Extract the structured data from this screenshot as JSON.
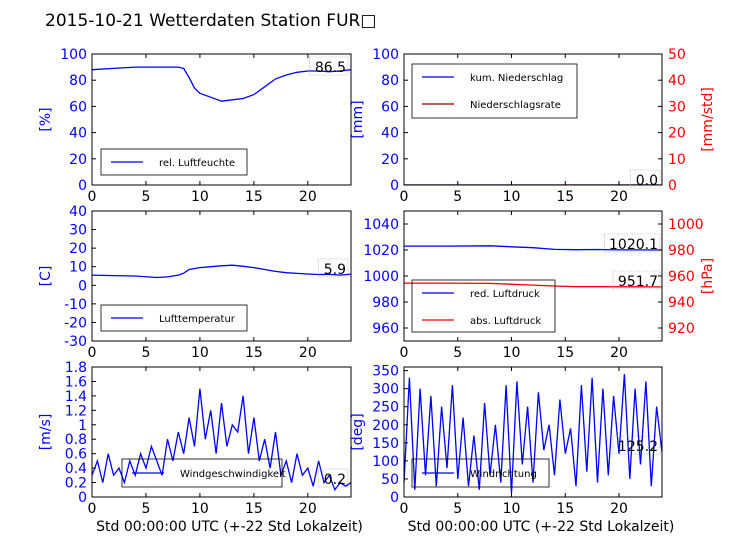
{
  "figure": {
    "title": "2015-10-21 Wetterdaten Station FUR□"
  },
  "colors": {
    "left_axis": "#0000ff",
    "right_axis": "#ff0000",
    "dark_red": "#8b0000"
  },
  "chart_data": [
    {
      "type": "line",
      "panel": "humidity",
      "xlabel": "",
      "ylabel": "[%]",
      "xlim": [
        0,
        24
      ],
      "ylim": [
        0,
        100
      ],
      "x_ticks": [
        0,
        5,
        10,
        15,
        20
      ],
      "y_ticks": [
        0,
        20,
        40,
        60,
        80,
        100
      ],
      "legend_position": "lower-left",
      "current_value_label": "86.5",
      "series": [
        {
          "name": "rel. Luftfeuchte",
          "color": "#0000ff",
          "x": [
            0,
            2,
            4,
            6,
            8,
            8.5,
            9,
            9.5,
            10,
            11,
            12,
            13,
            14,
            15,
            16,
            17,
            18,
            19,
            20,
            21,
            22,
            23,
            24
          ],
          "y": [
            88,
            89,
            90,
            90,
            90,
            89,
            82,
            74,
            70,
            67,
            64,
            65,
            66,
            69,
            75,
            81,
            84,
            86,
            87,
            87,
            86.5,
            87,
            88
          ]
        }
      ]
    },
    {
      "type": "line",
      "panel": "precipitation",
      "xlabel": "",
      "ylabel": "[mm]",
      "y2label": "[mm/std]",
      "xlim": [
        0,
        24
      ],
      "ylim": [
        0,
        100
      ],
      "y2lim": [
        0,
        50
      ],
      "x_ticks": [
        0,
        5,
        10,
        15,
        20
      ],
      "y_ticks": [
        0,
        20,
        40,
        60,
        80,
        100
      ],
      "y2_ticks": [
        0,
        10,
        20,
        30,
        40,
        50
      ],
      "legend_position": "upper-left",
      "current_value_label": "0.0",
      "series": [
        {
          "name": "kum. Niederschlag",
          "color": "#0000ff",
          "x": [
            0,
            24
          ],
          "y": [
            0,
            0
          ]
        },
        {
          "name": "Niederschlagsrate",
          "color": "#ff0000",
          "axis": "right",
          "x": [
            0,
            24
          ],
          "y": [
            0,
            0
          ]
        }
      ]
    },
    {
      "type": "line",
      "panel": "temperature",
      "xlabel": "",
      "ylabel": "[C]",
      "xlim": [
        0,
        24
      ],
      "ylim": [
        -30,
        40
      ],
      "x_ticks": [
        0,
        5,
        10,
        15,
        20
      ],
      "y_ticks": [
        -30,
        -20,
        -10,
        0,
        10,
        20,
        30,
        40
      ],
      "legend_position": "lower-left",
      "current_value_label": "5.9",
      "series": [
        {
          "name": "Lufttemperatur",
          "color": "#0000ff",
          "x": [
            0,
            2,
            4,
            6,
            7,
            8,
            8.5,
            9,
            10,
            11,
            12,
            13,
            14,
            15,
            16,
            17,
            18,
            19,
            20,
            21,
            22,
            23,
            24
          ],
          "y": [
            5.5,
            5.2,
            5.0,
            4.2,
            4.5,
            5.5,
            6.5,
            8.5,
            9.5,
            10.0,
            10.5,
            10.8,
            10.2,
            9.5,
            8.5,
            7.5,
            6.8,
            6.4,
            6.1,
            5.8,
            5.9,
            5.5,
            6.0
          ]
        }
      ]
    },
    {
      "type": "line",
      "panel": "pressure",
      "xlabel": "",
      "ylabel": "",
      "y2label": "[hPa]",
      "xlim": [
        0,
        24
      ],
      "ylim": [
        950,
        1050
      ],
      "y2lim": [
        910,
        1010
      ],
      "x_ticks": [
        0,
        5,
        10,
        15,
        20
      ],
      "y_ticks": [
        960,
        980,
        1000,
        1020,
        1040
      ],
      "y2_ticks": [
        920,
        940,
        960,
        980,
        1000
      ],
      "legend_position": "lower-left",
      "current_value_labels": [
        "1020.1",
        "951.7"
      ],
      "series": [
        {
          "name": "red. Luftdruck",
          "color": "#0000ff",
          "x": [
            0,
            4,
            8,
            10,
            12,
            14,
            16,
            18,
            20,
            22,
            24
          ],
          "y": [
            1023,
            1023,
            1023.2,
            1022.5,
            1021.8,
            1020.5,
            1020.2,
            1020.4,
            1020.1,
            1020.1,
            1020.0
          ]
        },
        {
          "name": "abs. Luftdruck",
          "color": "#ff0000",
          "axis": "right",
          "x": [
            0,
            4,
            8,
            10,
            12,
            14,
            16,
            18,
            20,
            22,
            24
          ],
          "y": [
            954.5,
            954.5,
            954.3,
            953.6,
            953.0,
            952.3,
            951.8,
            951.8,
            951.7,
            951.7,
            951.6
          ]
        }
      ]
    },
    {
      "type": "line",
      "panel": "wind_speed",
      "xlabel": "Std 00:00:00 UTC (+-22 Std Lokalzeit)",
      "ylabel": "[m/s]",
      "xlim": [
        0,
        24
      ],
      "ylim": [
        0,
        1.8
      ],
      "x_ticks": [
        0,
        5,
        10,
        15,
        20
      ],
      "y_ticks": [
        0.0,
        0.2,
        0.4,
        0.6,
        0.8,
        1.0,
        1.2,
        1.4,
        1.6,
        1.8
      ],
      "legend_position": "lower-center",
      "current_value_label": "0.2",
      "series": [
        {
          "name": "Windgeschwindigkeit",
          "color": "#0000ff",
          "x": [
            0,
            0.5,
            1,
            1.5,
            2,
            2.5,
            3,
            3.5,
            4,
            4.5,
            5,
            5.5,
            6,
            6.5,
            7,
            7.5,
            8,
            8.5,
            9,
            9.5,
            10,
            10.5,
            11,
            11.5,
            12,
            12.5,
            13,
            13.5,
            14,
            14.5,
            15,
            15.5,
            16,
            16.5,
            17,
            17.5,
            18,
            18.5,
            19,
            19.5,
            20,
            20.5,
            21,
            21.5,
            22,
            22.5,
            23,
            23.5,
            24
          ],
          "y": [
            0.3,
            0.5,
            0.2,
            0.6,
            0.3,
            0.4,
            0.2,
            0.5,
            0.3,
            0.6,
            0.4,
            0.7,
            0.5,
            0.3,
            0.8,
            0.5,
            0.9,
            0.6,
            1.1,
            0.7,
            1.5,
            0.8,
            1.2,
            0.6,
            1.3,
            0.7,
            1.0,
            0.9,
            1.4,
            0.6,
            1.1,
            0.5,
            0.8,
            0.4,
            0.9,
            0.3,
            0.5,
            0.2,
            0.6,
            0.3,
            0.4,
            0.15,
            0.5,
            0.2,
            0.3,
            0.1,
            0.2,
            0.15,
            0.2
          ]
        }
      ]
    },
    {
      "type": "line",
      "panel": "wind_direction",
      "xlabel": "Std 00:00:00 UTC (+-22 Std Lokalzeit)",
      "ylabel": "[deg]",
      "xlim": [
        0,
        24
      ],
      "ylim": [
        0,
        360
      ],
      "x_ticks": [
        0,
        5,
        10,
        15,
        20
      ],
      "y_ticks": [
        0,
        50,
        100,
        150,
        200,
        250,
        300,
        350
      ],
      "legend_position": "lower-left",
      "current_value_label": "125.2",
      "series": [
        {
          "name": "Windrichtung",
          "color": "#0000ff",
          "x": [
            0,
            0.5,
            1,
            1.5,
            2,
            2.5,
            3,
            3.5,
            4,
            4.5,
            5,
            5.5,
            6,
            6.5,
            7,
            7.5,
            8,
            8.5,
            9,
            9.5,
            10,
            10.5,
            11,
            11.5,
            12,
            12.5,
            13,
            13.5,
            14,
            14.5,
            15,
            15.5,
            16,
            16.5,
            17,
            17.5,
            18,
            18.5,
            19,
            19.5,
            20,
            20.5,
            21,
            21.5,
            22,
            22.5,
            23,
            23.5,
            24
          ],
          "y": [
            40,
            330,
            20,
            300,
            60,
            280,
            30,
            250,
            80,
            310,
            50,
            220,
            30,
            170,
            20,
            260,
            60,
            200,
            40,
            310,
            10,
            320,
            90,
            250,
            40,
            290,
            130,
            200,
            60,
            270,
            120,
            190,
            30,
            310,
            70,
            330,
            40,
            300,
            60,
            280,
            120,
            340,
            50,
            300,
            90,
            320,
            30,
            250,
            125
          ]
        }
      ]
    }
  ]
}
